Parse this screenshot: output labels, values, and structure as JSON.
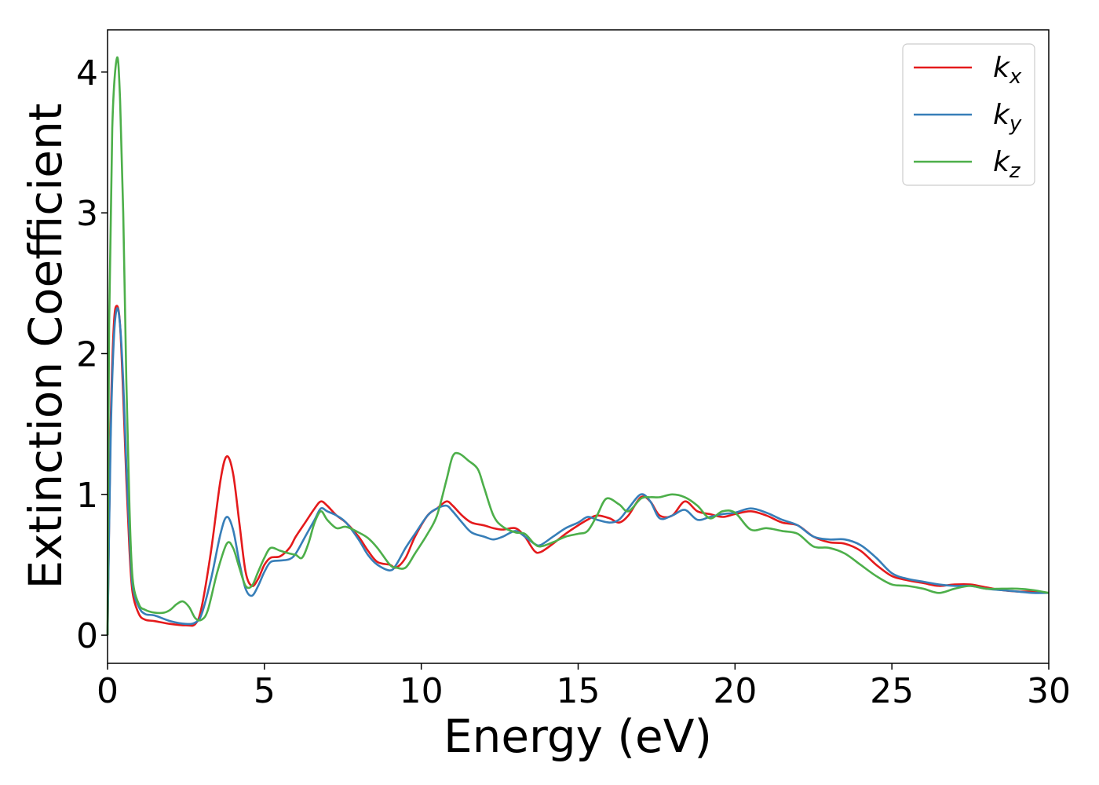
{
  "chart_data": {
    "type": "line",
    "title": "",
    "xlabel": "Energy (eV)",
    "ylabel": "Extinction Coefficient",
    "xlim": [
      0,
      30
    ],
    "ylim": [
      -0.2,
      4.3
    ],
    "xticks": [
      0,
      5,
      10,
      15,
      20,
      25,
      30
    ],
    "xtick_labels": [
      "0",
      "5",
      "10",
      "15",
      "20",
      "25",
      "30"
    ],
    "yticks": [
      0,
      1,
      2,
      3,
      4
    ],
    "ytick_labels": [
      "0",
      "1",
      "2",
      "3",
      "4"
    ],
    "grid": false,
    "legend": {
      "position": "top-right"
    },
    "series": [
      {
        "name_base": "k",
        "name_sub": "x",
        "color": "#e41a1c",
        "points": [
          [
            0,
            0
          ],
          [
            0.1,
            1.5
          ],
          [
            0.2,
            2.2
          ],
          [
            0.3,
            2.34
          ],
          [
            0.4,
            2.2
          ],
          [
            0.5,
            1.7
          ],
          [
            0.6,
            1.1
          ],
          [
            0.7,
            0.6
          ],
          [
            0.8,
            0.3
          ],
          [
            1.0,
            0.15
          ],
          [
            1.2,
            0.11
          ],
          [
            1.5,
            0.1
          ],
          [
            2.0,
            0.08
          ],
          [
            2.5,
            0.07
          ],
          [
            2.8,
            0.08
          ],
          [
            3.0,
            0.2
          ],
          [
            3.3,
            0.6
          ],
          [
            3.6,
            1.1
          ],
          [
            3.8,
            1.27
          ],
          [
            4.0,
            1.15
          ],
          [
            4.2,
            0.8
          ],
          [
            4.4,
            0.45
          ],
          [
            4.6,
            0.35
          ],
          [
            4.8,
            0.4
          ],
          [
            5.0,
            0.5
          ],
          [
            5.2,
            0.55
          ],
          [
            5.5,
            0.56
          ],
          [
            5.8,
            0.62
          ],
          [
            6.0,
            0.7
          ],
          [
            6.3,
            0.8
          ],
          [
            6.6,
            0.9
          ],
          [
            6.8,
            0.95
          ],
          [
            7.0,
            0.92
          ],
          [
            7.3,
            0.85
          ],
          [
            7.6,
            0.8
          ],
          [
            8.0,
            0.7
          ],
          [
            8.3,
            0.6
          ],
          [
            8.6,
            0.52
          ],
          [
            9.0,
            0.5
          ],
          [
            9.2,
            0.48
          ],
          [
            9.5,
            0.55
          ],
          [
            9.8,
            0.7
          ],
          [
            10.2,
            0.85
          ],
          [
            10.5,
            0.9
          ],
          [
            10.8,
            0.95
          ],
          [
            11.0,
            0.92
          ],
          [
            11.3,
            0.85
          ],
          [
            11.6,
            0.8
          ],
          [
            12.0,
            0.78
          ],
          [
            12.3,
            0.76
          ],
          [
            12.6,
            0.75
          ],
          [
            13.0,
            0.76
          ],
          [
            13.3,
            0.7
          ],
          [
            13.6,
            0.6
          ],
          [
            13.8,
            0.59
          ],
          [
            14.2,
            0.65
          ],
          [
            14.6,
            0.72
          ],
          [
            15.0,
            0.78
          ],
          [
            15.3,
            0.82
          ],
          [
            15.6,
            0.85
          ],
          [
            16.0,
            0.83
          ],
          [
            16.3,
            0.8
          ],
          [
            16.6,
            0.85
          ],
          [
            17.0,
            0.98
          ],
          [
            17.3,
            0.95
          ],
          [
            17.6,
            0.85
          ],
          [
            18.0,
            0.85
          ],
          [
            18.4,
            0.95
          ],
          [
            18.8,
            0.88
          ],
          [
            19.2,
            0.86
          ],
          [
            19.6,
            0.84
          ],
          [
            20.0,
            0.86
          ],
          [
            20.5,
            0.88
          ],
          [
            21.0,
            0.85
          ],
          [
            21.5,
            0.8
          ],
          [
            22.0,
            0.78
          ],
          [
            22.5,
            0.7
          ],
          [
            23.0,
            0.66
          ],
          [
            23.5,
            0.65
          ],
          [
            24.0,
            0.6
          ],
          [
            24.5,
            0.5
          ],
          [
            25.0,
            0.42
          ],
          [
            25.5,
            0.39
          ],
          [
            26.0,
            0.37
          ],
          [
            26.5,
            0.35
          ],
          [
            27.0,
            0.36
          ],
          [
            27.5,
            0.36
          ],
          [
            28.0,
            0.34
          ],
          [
            28.5,
            0.32
          ],
          [
            29.0,
            0.31
          ],
          [
            29.5,
            0.31
          ],
          [
            30.0,
            0.3
          ]
        ]
      },
      {
        "name_base": "k",
        "name_sub": "y",
        "color": "#377eb8",
        "points": [
          [
            0,
            0
          ],
          [
            0.1,
            1.4
          ],
          [
            0.2,
            2.1
          ],
          [
            0.3,
            2.32
          ],
          [
            0.4,
            2.2
          ],
          [
            0.5,
            1.8
          ],
          [
            0.6,
            1.2
          ],
          [
            0.7,
            0.7
          ],
          [
            0.8,
            0.35
          ],
          [
            1.0,
            0.2
          ],
          [
            1.2,
            0.15
          ],
          [
            1.5,
            0.14
          ],
          [
            2.0,
            0.1
          ],
          [
            2.5,
            0.08
          ],
          [
            2.8,
            0.09
          ],
          [
            3.0,
            0.15
          ],
          [
            3.3,
            0.4
          ],
          [
            3.6,
            0.72
          ],
          [
            3.8,
            0.84
          ],
          [
            4.0,
            0.75
          ],
          [
            4.2,
            0.52
          ],
          [
            4.4,
            0.33
          ],
          [
            4.6,
            0.28
          ],
          [
            4.8,
            0.35
          ],
          [
            5.0,
            0.45
          ],
          [
            5.2,
            0.52
          ],
          [
            5.5,
            0.53
          ],
          [
            5.8,
            0.54
          ],
          [
            6.0,
            0.58
          ],
          [
            6.3,
            0.7
          ],
          [
            6.6,
            0.82
          ],
          [
            6.8,
            0.9
          ],
          [
            7.0,
            0.88
          ],
          [
            7.3,
            0.85
          ],
          [
            7.6,
            0.8
          ],
          [
            8.0,
            0.68
          ],
          [
            8.3,
            0.57
          ],
          [
            8.6,
            0.5
          ],
          [
            9.0,
            0.46
          ],
          [
            9.2,
            0.5
          ],
          [
            9.5,
            0.62
          ],
          [
            9.8,
            0.72
          ],
          [
            10.2,
            0.85
          ],
          [
            10.5,
            0.9
          ],
          [
            10.8,
            0.92
          ],
          [
            11.0,
            0.88
          ],
          [
            11.3,
            0.8
          ],
          [
            11.6,
            0.73
          ],
          [
            12.0,
            0.7
          ],
          [
            12.3,
            0.68
          ],
          [
            12.6,
            0.7
          ],
          [
            13.0,
            0.74
          ],
          [
            13.3,
            0.7
          ],
          [
            13.6,
            0.65
          ],
          [
            13.8,
            0.64
          ],
          [
            14.2,
            0.7
          ],
          [
            14.6,
            0.76
          ],
          [
            15.0,
            0.8
          ],
          [
            15.3,
            0.84
          ],
          [
            15.6,
            0.82
          ],
          [
            16.0,
            0.8
          ],
          [
            16.3,
            0.82
          ],
          [
            16.6,
            0.9
          ],
          [
            17.0,
            1.0
          ],
          [
            17.3,
            0.95
          ],
          [
            17.6,
            0.83
          ],
          [
            18.0,
            0.85
          ],
          [
            18.4,
            0.89
          ],
          [
            18.8,
            0.82
          ],
          [
            19.2,
            0.84
          ],
          [
            19.6,
            0.86
          ],
          [
            20.0,
            0.87
          ],
          [
            20.5,
            0.9
          ],
          [
            21.0,
            0.87
          ],
          [
            21.5,
            0.82
          ],
          [
            22.0,
            0.78
          ],
          [
            22.5,
            0.7
          ],
          [
            23.0,
            0.68
          ],
          [
            23.5,
            0.68
          ],
          [
            24.0,
            0.64
          ],
          [
            24.5,
            0.55
          ],
          [
            25.0,
            0.44
          ],
          [
            25.5,
            0.4
          ],
          [
            26.0,
            0.38
          ],
          [
            26.5,
            0.36
          ],
          [
            27.0,
            0.35
          ],
          [
            27.5,
            0.35
          ],
          [
            28.0,
            0.33
          ],
          [
            28.5,
            0.32
          ],
          [
            29.0,
            0.31
          ],
          [
            29.5,
            0.3
          ],
          [
            30.0,
            0.3
          ]
        ]
      },
      {
        "name_base": "k",
        "name_sub": "z",
        "color": "#4daf4a",
        "points": [
          [
            0,
            0
          ],
          [
            0.05,
            2.2
          ],
          [
            0.15,
            3.6
          ],
          [
            0.3,
            4.1
          ],
          [
            0.4,
            3.8
          ],
          [
            0.5,
            3.0
          ],
          [
            0.6,
            1.8
          ],
          [
            0.7,
            0.9
          ],
          [
            0.8,
            0.4
          ],
          [
            1.0,
            0.22
          ],
          [
            1.2,
            0.18
          ],
          [
            1.5,
            0.16
          ],
          [
            1.8,
            0.16
          ],
          [
            2.0,
            0.18
          ],
          [
            2.2,
            0.22
          ],
          [
            2.4,
            0.24
          ],
          [
            2.6,
            0.2
          ],
          [
            2.8,
            0.12
          ],
          [
            3.0,
            0.11
          ],
          [
            3.2,
            0.18
          ],
          [
            3.5,
            0.45
          ],
          [
            3.8,
            0.65
          ],
          [
            4.0,
            0.62
          ],
          [
            4.2,
            0.48
          ],
          [
            4.4,
            0.35
          ],
          [
            4.6,
            0.35
          ],
          [
            4.8,
            0.45
          ],
          [
            5.0,
            0.55
          ],
          [
            5.2,
            0.62
          ],
          [
            5.5,
            0.6
          ],
          [
            5.8,
            0.58
          ],
          [
            6.0,
            0.57
          ],
          [
            6.2,
            0.55
          ],
          [
            6.4,
            0.65
          ],
          [
            6.6,
            0.8
          ],
          [
            6.8,
            0.88
          ],
          [
            7.0,
            0.82
          ],
          [
            7.3,
            0.76
          ],
          [
            7.6,
            0.77
          ],
          [
            8.0,
            0.73
          ],
          [
            8.3,
            0.69
          ],
          [
            8.6,
            0.62
          ],
          [
            9.0,
            0.5
          ],
          [
            9.2,
            0.48
          ],
          [
            9.5,
            0.48
          ],
          [
            9.8,
            0.58
          ],
          [
            10.2,
            0.72
          ],
          [
            10.5,
            0.85
          ],
          [
            10.8,
            1.1
          ],
          [
            11.0,
            1.27
          ],
          [
            11.2,
            1.29
          ],
          [
            11.5,
            1.24
          ],
          [
            11.8,
            1.18
          ],
          [
            12.0,
            1.05
          ],
          [
            12.3,
            0.85
          ],
          [
            12.6,
            0.77
          ],
          [
            13.0,
            0.73
          ],
          [
            13.3,
            0.72
          ],
          [
            13.6,
            0.65
          ],
          [
            13.8,
            0.63
          ],
          [
            14.2,
            0.66
          ],
          [
            14.6,
            0.7
          ],
          [
            15.0,
            0.72
          ],
          [
            15.3,
            0.74
          ],
          [
            15.6,
            0.85
          ],
          [
            15.9,
            0.97
          ],
          [
            16.3,
            0.93
          ],
          [
            16.6,
            0.88
          ],
          [
            17.0,
            0.97
          ],
          [
            17.3,
            0.98
          ],
          [
            17.6,
            0.98
          ],
          [
            18.0,
            1.0
          ],
          [
            18.4,
            0.98
          ],
          [
            18.8,
            0.92
          ],
          [
            19.2,
            0.83
          ],
          [
            19.6,
            0.88
          ],
          [
            20.0,
            0.87
          ],
          [
            20.5,
            0.75
          ],
          [
            21.0,
            0.76
          ],
          [
            21.5,
            0.74
          ],
          [
            22.0,
            0.72
          ],
          [
            22.5,
            0.63
          ],
          [
            23.0,
            0.62
          ],
          [
            23.5,
            0.58
          ],
          [
            24.0,
            0.5
          ],
          [
            24.5,
            0.42
          ],
          [
            25.0,
            0.36
          ],
          [
            25.5,
            0.35
          ],
          [
            26.0,
            0.33
          ],
          [
            26.5,
            0.3
          ],
          [
            27.0,
            0.33
          ],
          [
            27.5,
            0.35
          ],
          [
            28.0,
            0.33
          ],
          [
            28.5,
            0.33
          ],
          [
            29.0,
            0.33
          ],
          [
            29.5,
            0.32
          ],
          [
            30.0,
            0.3
          ]
        ]
      }
    ]
  }
}
